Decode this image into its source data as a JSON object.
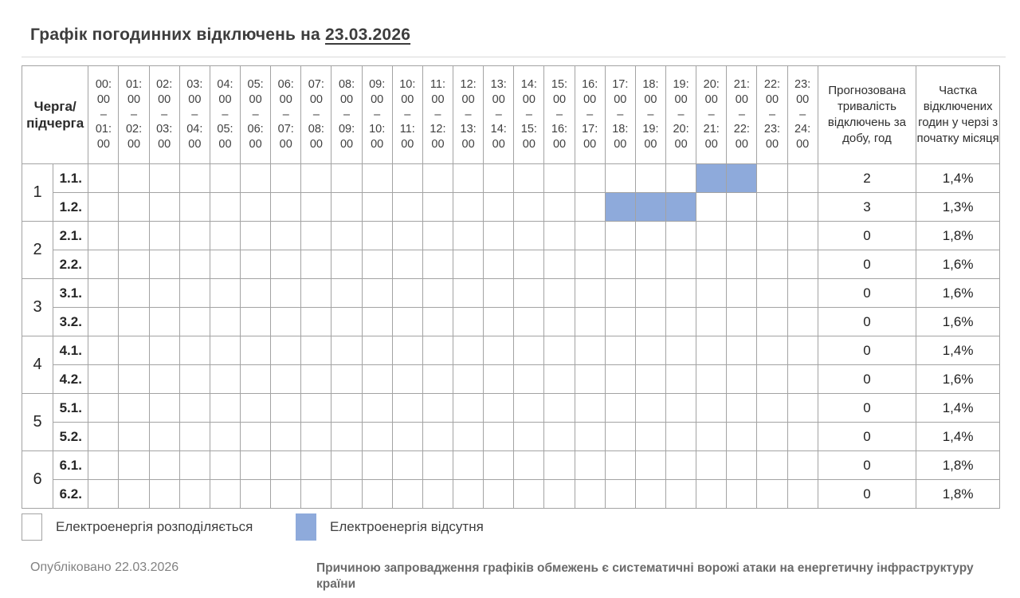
{
  "title": {
    "text": "Графік погодинних відключень на",
    "date": "23.03.2026"
  },
  "chart_data": {
    "type": "table",
    "title": "Графік погодинних відключень на 23.03.2026",
    "corner_header": "Черга/\nпідчерга",
    "hour_slots": [
      "00:00 – 01:00",
      "01:00 – 02:00",
      "02:00 – 03:00",
      "03:00 – 04:00",
      "04:00 – 05:00",
      "05:00 – 06:00",
      "06:00 – 07:00",
      "07:00 – 08:00",
      "08:00 – 09:00",
      "09:00 – 10:00",
      "10:00 – 11:00",
      "11:00 – 12:00",
      "12:00 – 13:00",
      "13:00 – 14:00",
      "14:00 – 15:00",
      "15:00 – 16:00",
      "16:00 – 17:00",
      "17:00 – 18:00",
      "18:00 – 19:00",
      "19:00 – 20:00",
      "20:00 – 21:00",
      "21:00 – 22:00",
      "22:00 – 23:00",
      "23:00 – 24:00"
    ],
    "duration_header": "Прогнозована тривалість відключень за добу, год",
    "share_header": "Частка відключених годин у черзі з початку місяця",
    "queues": [
      {
        "queue": "1",
        "rows": [
          {
            "subqueue": "1.1.",
            "outage_slots": [
              "20:00 – 21:00",
              "21:00 – 22:00"
            ],
            "duration_hours": "2",
            "share": "1,4%"
          },
          {
            "subqueue": "1.2.",
            "outage_slots": [
              "17:00 – 18:00",
              "18:00 – 19:00",
              "19:00 – 20:00"
            ],
            "duration_hours": "3",
            "share": "1,3%"
          }
        ]
      },
      {
        "queue": "2",
        "rows": [
          {
            "subqueue": "2.1.",
            "outage_slots": [],
            "duration_hours": "0",
            "share": "1,8%"
          },
          {
            "subqueue": "2.2.",
            "outage_slots": [],
            "duration_hours": "0",
            "share": "1,6%"
          }
        ]
      },
      {
        "queue": "3",
        "rows": [
          {
            "subqueue": "3.1.",
            "outage_slots": [],
            "duration_hours": "0",
            "share": "1,6%"
          },
          {
            "subqueue": "3.2.",
            "outage_slots": [],
            "duration_hours": "0",
            "share": "1,6%"
          }
        ]
      },
      {
        "queue": "4",
        "rows": [
          {
            "subqueue": "4.1.",
            "outage_slots": [],
            "duration_hours": "0",
            "share": "1,4%"
          },
          {
            "subqueue": "4.2.",
            "outage_slots": [],
            "duration_hours": "0",
            "share": "1,6%"
          }
        ]
      },
      {
        "queue": "5",
        "rows": [
          {
            "subqueue": "5.1.",
            "outage_slots": [],
            "duration_hours": "0",
            "share": "1,4%"
          },
          {
            "subqueue": "5.2.",
            "outage_slots": [],
            "duration_hours": "0",
            "share": "1,4%"
          }
        ]
      },
      {
        "queue": "6",
        "rows": [
          {
            "subqueue": "6.1.",
            "outage_slots": [],
            "duration_hours": "0",
            "share": "1,8%"
          },
          {
            "subqueue": "6.2.",
            "outage_slots": [],
            "duration_hours": "0",
            "share": "1,8%"
          }
        ]
      }
    ]
  },
  "legend": {
    "items": [
      {
        "state": "on",
        "label": "Електроенергія розподіляється"
      },
      {
        "state": "off",
        "label": "Електроенергія відсутня"
      }
    ]
  },
  "footer": {
    "published": "Опубліковано 22.03.2026",
    "reason": "Причиною запровадження графіків обмежень є систематичні ворожі атаки на енергетичну інфраструктуру країни"
  },
  "colors": {
    "outage_fill": "#8EAADB",
    "grid_border": "#A3A3A3",
    "rule": "#D9D9D9"
  }
}
